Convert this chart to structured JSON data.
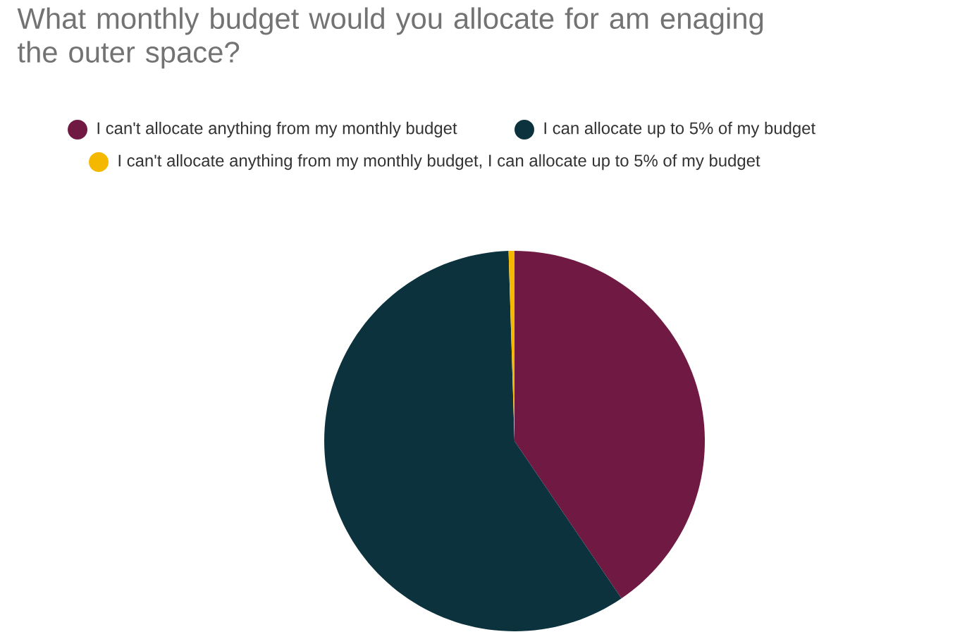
{
  "chart_data": {
    "type": "pie",
    "title": "What monthly budget would you allocate for am enaging the outer space?",
    "categories": [
      "I can't allocate anything from my monthly budget",
      "I can allocate up to 5% of my budget",
      "I can't allocate anything from my monthly budget, I can allocate up to 5% of my budget"
    ],
    "values": [
      40.5,
      59,
      0.5
    ],
    "colors": [
      "#701a43",
      "#0c333d",
      "#f5b800"
    ],
    "legend": "top"
  }
}
